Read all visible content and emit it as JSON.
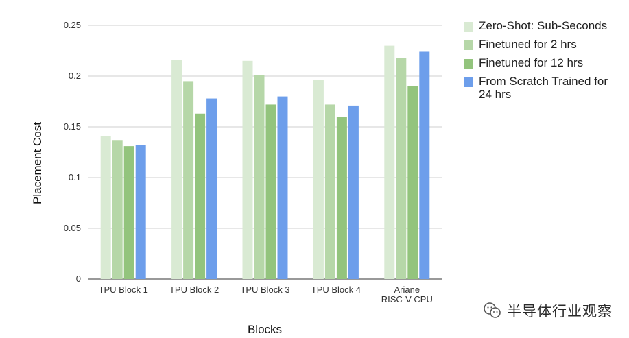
{
  "chart_data": {
    "type": "bar",
    "xlabel": "Blocks",
    "ylabel": "Placement Cost",
    "ylim": [
      0,
      0.25
    ],
    "yticks": [
      "0",
      "0.05",
      "0.1",
      "0.15",
      "0.2",
      "0.25"
    ],
    "grid": true,
    "legend_position": "right",
    "categories": [
      {
        "lines": [
          "TPU Block 1"
        ]
      },
      {
        "lines": [
          "TPU Block 2"
        ]
      },
      {
        "lines": [
          "TPU Block 3"
        ]
      },
      {
        "lines": [
          "TPU Block 4"
        ]
      },
      {
        "lines": [
          "Ariane",
          "RISC-V CPU"
        ]
      }
    ],
    "series": [
      {
        "name": "Zero-Shot: Sub-Seconds",
        "color": "#d9ead3",
        "values": [
          0.141,
          0.216,
          0.215,
          0.196,
          0.23
        ]
      },
      {
        "name": "Finetuned for 2 hrs",
        "color": "#b6d7a8",
        "values": [
          0.137,
          0.195,
          0.201,
          0.172,
          0.218
        ]
      },
      {
        "name": "Finetuned for 12 hrs",
        "color": "#93c47d",
        "values": [
          0.131,
          0.163,
          0.172,
          0.16,
          0.19
        ]
      },
      {
        "name": "From Scratch Trained for 24 hrs",
        "color": "#6d9eeb",
        "values": [
          0.132,
          0.178,
          0.18,
          0.171,
          0.224
        ]
      }
    ],
    "legend_lines": [
      [
        "Zero-Shot: Sub-Seconds"
      ],
      [
        "Finetuned for 2 hrs"
      ],
      [
        "Finetuned for 12 hrs"
      ],
      [
        "From Scratch Trained for",
        "24 hrs"
      ]
    ]
  },
  "watermark": {
    "text": "半导体行业观察",
    "icon": "wechat-icon"
  }
}
